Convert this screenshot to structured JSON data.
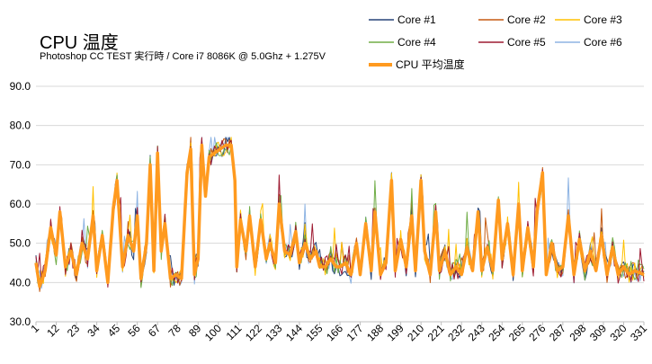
{
  "chart_data": {
    "type": "line",
    "title": "CPU 温度",
    "subtitle": "Photoshop CC TEST 実行時 / Core i7 8086K @ 5.0Ghz + 1.275V",
    "ylim": [
      30,
      90
    ],
    "y_ticks": [
      "30.0",
      "40.0",
      "50.0",
      "60.0",
      "70.0",
      "80.0",
      "90.0"
    ],
    "x_range": [
      1,
      331
    ],
    "x_ticks": [
      1,
      12,
      23,
      34,
      45,
      56,
      67,
      78,
      89,
      100,
      111,
      122,
      133,
      144,
      155,
      166,
      177,
      188,
      199,
      210,
      221,
      232,
      243,
      254,
      265,
      276,
      287,
      298,
      309,
      320,
      331
    ],
    "grid": "horizontal",
    "legend_position": "top-right",
    "series": [
      {
        "name": "Core #1",
        "color": "#264478",
        "width": 1
      },
      {
        "name": "Core #2",
        "color": "#c55a11",
        "width": 1
      },
      {
        "name": "Core #3",
        "color": "#ffc000",
        "width": 1
      },
      {
        "name": "Core #4",
        "color": "#70ad47",
        "width": 1
      },
      {
        "name": "Core #5",
        "color": "#9e1b32",
        "width": 1
      },
      {
        "name": "Core #6",
        "color": "#8eb4e3",
        "width": 1
      },
      {
        "name": "CPU 平均温度",
        "color": "#ff9a1f",
        "width": 3.5
      }
    ],
    "profile_keypoints": [
      [
        1,
        45
      ],
      [
        3,
        39
      ],
      [
        6,
        43
      ],
      [
        9,
        54
      ],
      [
        12,
        47
      ],
      [
        14,
        58
      ],
      [
        17,
        44
      ],
      [
        20,
        48
      ],
      [
        23,
        42
      ],
      [
        26,
        50
      ],
      [
        29,
        46
      ],
      [
        32,
        57
      ],
      [
        34,
        43
      ],
      [
        37,
        52
      ],
      [
        40,
        40
      ],
      [
        43,
        59
      ],
      [
        45,
        66
      ],
      [
        48,
        44
      ],
      [
        51,
        52
      ],
      [
        54,
        48
      ],
      [
        56,
        57
      ],
      [
        58,
        41
      ],
      [
        61,
        50
      ],
      [
        63,
        70
      ],
      [
        65,
        43
      ],
      [
        67,
        73
      ],
      [
        69,
        48
      ],
      [
        71,
        55
      ],
      [
        74,
        41
      ],
      [
        77,
        42
      ],
      [
        80,
        41
      ],
      [
        83,
        68
      ],
      [
        85,
        74
      ],
      [
        87,
        42
      ],
      [
        89,
        46
      ],
      [
        91,
        75
      ],
      [
        93,
        62
      ],
      [
        95,
        72
      ],
      [
        98,
        73
      ],
      [
        101,
        74
      ],
      [
        104,
        75
      ],
      [
        107,
        75
      ],
      [
        109,
        66
      ],
      [
        110,
        44
      ],
      [
        112,
        56
      ],
      [
        115,
        48
      ],
      [
        117,
        57
      ],
      [
        120,
        44
      ],
      [
        123,
        56
      ],
      [
        126,
        46
      ],
      [
        128,
        50
      ],
      [
        131,
        45
      ],
      [
        133,
        60
      ],
      [
        136,
        48
      ],
      [
        139,
        47
      ],
      [
        142,
        53
      ],
      [
        144,
        45
      ],
      [
        147,
        50
      ],
      [
        150,
        46
      ],
      [
        153,
        48
      ],
      [
        155,
        44
      ],
      [
        158,
        44
      ],
      [
        161,
        46
      ],
      [
        164,
        44
      ],
      [
        166,
        44
      ],
      [
        169,
        45
      ],
      [
        172,
        42
      ],
      [
        175,
        50
      ],
      [
        177,
        42
      ],
      [
        180,
        55
      ],
      [
        183,
        43
      ],
      [
        185,
        58
      ],
      [
        188,
        42
      ],
      [
        191,
        45
      ],
      [
        194,
        66
      ],
      [
        196,
        43
      ],
      [
        199,
        51
      ],
      [
        202,
        44
      ],
      [
        205,
        57
      ],
      [
        207,
        43
      ],
      [
        210,
        66
      ],
      [
        212,
        48
      ],
      [
        215,
        42
      ],
      [
        218,
        58
      ],
      [
        220,
        43
      ],
      [
        223,
        48
      ],
      [
        226,
        42
      ],
      [
        229,
        44
      ],
      [
        232,
        42
      ],
      [
        235,
        49
      ],
      [
        238,
        43
      ],
      [
        241,
        58
      ],
      [
        243,
        43
      ],
      [
        246,
        49
      ],
      [
        249,
        43
      ],
      [
        252,
        61
      ],
      [
        254,
        46
      ],
      [
        257,
        55
      ],
      [
        260,
        42
      ],
      [
        263,
        60
      ],
      [
        265,
        43
      ],
      [
        268,
        54
      ],
      [
        271,
        44
      ],
      [
        273,
        58
      ],
      [
        276,
        68
      ],
      [
        278,
        42
      ],
      [
        281,
        50
      ],
      [
        284,
        43
      ],
      [
        287,
        44
      ],
      [
        290,
        57
      ],
      [
        293,
        42
      ],
      [
        296,
        51
      ],
      [
        299,
        43
      ],
      [
        302,
        48
      ],
      [
        305,
        43
      ],
      [
        308,
        52
      ],
      [
        311,
        42
      ],
      [
        314,
        49
      ],
      [
        317,
        42
      ],
      [
        320,
        44
      ],
      [
        323,
        42
      ],
      [
        326,
        43
      ],
      [
        331,
        42
      ]
    ]
  }
}
